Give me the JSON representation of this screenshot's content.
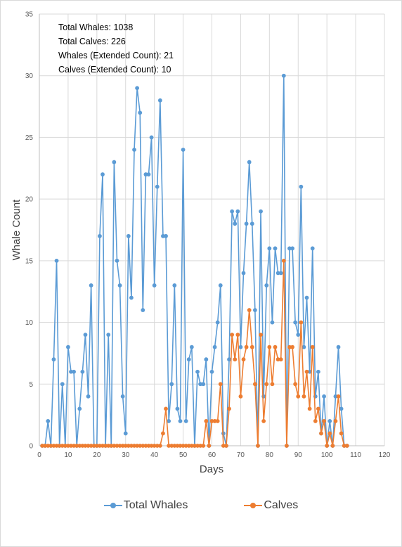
{
  "chart_data": {
    "type": "line",
    "xlabel": "Days",
    "ylabel": "Whale Count",
    "xlim": [
      0,
      120
    ],
    "ylim": [
      0,
      35
    ],
    "xticks": [
      0,
      10,
      20,
      30,
      40,
      50,
      60,
      70,
      80,
      90,
      100,
      110,
      120
    ],
    "yticks": [
      0,
      5,
      10,
      15,
      20,
      25,
      30,
      35
    ],
    "grid": true,
    "legend_position": "bottom",
    "annotations": [
      "Total Whales: 1038",
      "Total Calves: 226",
      "Whales (Extended Count): 21",
      "Calves (Extended Count):  10"
    ],
    "series": [
      {
        "name": "Total Whales",
        "color": "#5b9bd5",
        "x": [
          1,
          2,
          3,
          4,
          5,
          6,
          7,
          8,
          9,
          10,
          11,
          12,
          13,
          14,
          15,
          16,
          17,
          18,
          19,
          20,
          21,
          22,
          23,
          24,
          25,
          26,
          27,
          28,
          29,
          30,
          31,
          32,
          33,
          34,
          35,
          36,
          37,
          38,
          39,
          40,
          41,
          42,
          43,
          44,
          45,
          46,
          47,
          48,
          49,
          50,
          51,
          52,
          53,
          54,
          55,
          56,
          57,
          58,
          59,
          60,
          61,
          62,
          63,
          64,
          65,
          66,
          67,
          68,
          69,
          70,
          71,
          72,
          73,
          74,
          75,
          76,
          77,
          78,
          79,
          80,
          81,
          82,
          83,
          84,
          85,
          86,
          87,
          88,
          89,
          90,
          91,
          92,
          93,
          94,
          95,
          96,
          97,
          98,
          99,
          100,
          101,
          102,
          103,
          104,
          105,
          106,
          107
        ],
        "y": [
          0,
          0,
          2,
          0,
          7,
          15,
          0,
          5,
          0,
          8,
          6,
          6,
          0,
          3,
          6,
          9,
          4,
          13,
          0,
          0,
          17,
          22,
          0,
          9,
          0,
          23,
          15,
          13,
          4,
          1,
          17,
          12,
          24,
          29,
          27,
          11,
          22,
          22,
          25,
          13,
          21,
          28,
          17,
          17,
          2,
          5,
          13,
          3,
          2,
          24,
          2,
          7,
          8,
          0,
          6,
          5,
          5,
          7,
          0,
          6,
          8,
          10,
          13,
          1,
          0,
          7,
          19,
          18,
          19,
          8,
          14,
          18,
          23,
          18,
          11,
          0,
          19,
          4,
          13,
          16,
          10,
          16,
          14,
          14,
          30,
          0,
          16,
          16,
          10,
          9,
          21,
          8,
          12,
          6,
          16,
          4,
          6,
          1,
          4,
          0,
          2,
          0,
          4,
          8,
          3,
          0,
          0
        ]
      },
      {
        "name": "Calves",
        "color": "#ed7d31",
        "x": [
          1,
          2,
          3,
          4,
          5,
          6,
          7,
          8,
          9,
          10,
          11,
          12,
          13,
          14,
          15,
          16,
          17,
          18,
          19,
          20,
          21,
          22,
          23,
          24,
          25,
          26,
          27,
          28,
          29,
          30,
          31,
          32,
          33,
          34,
          35,
          36,
          37,
          38,
          39,
          40,
          41,
          42,
          43,
          44,
          45,
          46,
          47,
          48,
          49,
          50,
          51,
          52,
          53,
          54,
          55,
          56,
          57,
          58,
          59,
          60,
          61,
          62,
          63,
          64,
          65,
          66,
          67,
          68,
          69,
          70,
          71,
          72,
          73,
          74,
          75,
          76,
          77,
          78,
          79,
          80,
          81,
          82,
          83,
          84,
          85,
          86,
          87,
          88,
          89,
          90,
          91,
          92,
          93,
          94,
          95,
          96,
          97,
          98,
          99,
          100,
          101,
          102,
          103,
          104,
          105,
          106,
          107
        ],
        "y": [
          0,
          0,
          0,
          0,
          0,
          0,
          0,
          0,
          0,
          0,
          0,
          0,
          0,
          0,
          0,
          0,
          0,
          0,
          0,
          0,
          0,
          0,
          0,
          0,
          0,
          0,
          0,
          0,
          0,
          0,
          0,
          0,
          0,
          0,
          0,
          0,
          0,
          0,
          0,
          0,
          0,
          0,
          1,
          3,
          0,
          0,
          0,
          0,
          0,
          0,
          0,
          0,
          0,
          0,
          0,
          0,
          0,
          2,
          0,
          2,
          2,
          2,
          5,
          0,
          0,
          3,
          9,
          7,
          9,
          4,
          7,
          8,
          11,
          8,
          5,
          0,
          9,
          2,
          5,
          8,
          5,
          8,
          7,
          7,
          15,
          0,
          8,
          8,
          5,
          4,
          10,
          4,
          6,
          3,
          8,
          2,
          3,
          1,
          2,
          0,
          1,
          0,
          2,
          4,
          1,
          0,
          0
        ]
      }
    ]
  }
}
